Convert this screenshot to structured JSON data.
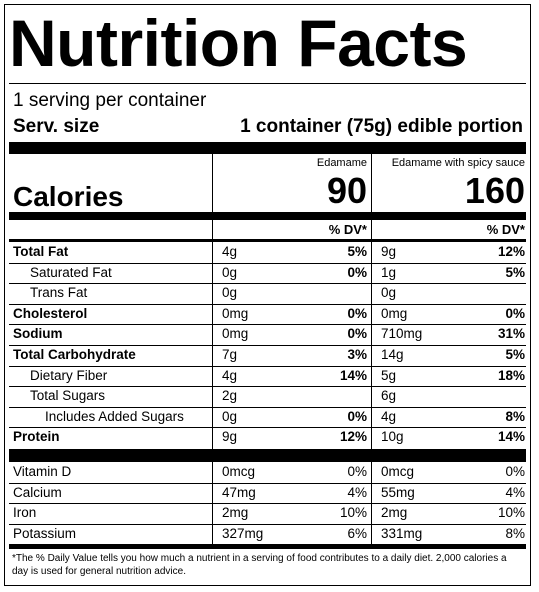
{
  "title": "Nutrition Facts",
  "servings": "1 serving per container",
  "serving_size_label": "Serv. size",
  "serving_size_value": "1 container (75g) edible portion",
  "columns": [
    {
      "name": "Edamame",
      "calories": "90"
    },
    {
      "name": "Edamame with spicy sauce",
      "calories": "160"
    }
  ],
  "calories_label": "Calories",
  "dv_header": "% DV*",
  "nutrients": [
    {
      "label": "Total Fat",
      "bold": true,
      "indent": 0,
      "c1_amt": "4g",
      "c1_dv": "5%",
      "c2_amt": "9g",
      "c2_dv": "12%"
    },
    {
      "label": "Saturated Fat",
      "bold": false,
      "indent": 1,
      "c1_amt": "0g",
      "c1_dv": "0%",
      "c2_amt": "1g",
      "c2_dv": "5%"
    },
    {
      "label": "Trans Fat",
      "bold": false,
      "indent": 1,
      "c1_amt": "0g",
      "c1_dv": "",
      "c2_amt": "0g",
      "c2_dv": ""
    },
    {
      "label": "Cholesterol",
      "bold": true,
      "indent": 0,
      "c1_amt": "0mg",
      "c1_dv": "0%",
      "c2_amt": "0mg",
      "c2_dv": "0%"
    },
    {
      "label": "Sodium",
      "bold": true,
      "indent": 0,
      "c1_amt": "0mg",
      "c1_dv": "0%",
      "c2_amt": "710mg",
      "c2_dv": "31%"
    },
    {
      "label": "Total Carbohydrate",
      "bold": true,
      "indent": 0,
      "c1_amt": "7g",
      "c1_dv": "3%",
      "c2_amt": "14g",
      "c2_dv": "5%"
    },
    {
      "label": "Dietary Fiber",
      "bold": false,
      "indent": 1,
      "c1_amt": "4g",
      "c1_dv": "14%",
      "c2_amt": "5g",
      "c2_dv": "18%"
    },
    {
      "label": "Total Sugars",
      "bold": false,
      "indent": 1,
      "c1_amt": "2g",
      "c1_dv": "",
      "c2_amt": "6g",
      "c2_dv": ""
    },
    {
      "label": "Includes Added Sugars",
      "bold": false,
      "indent": 2,
      "c1_amt": "0g",
      "c1_dv": "0%",
      "c2_amt": "4g",
      "c2_dv": "8%"
    },
    {
      "label": "Protein",
      "bold": true,
      "indent": 0,
      "c1_amt": "9g",
      "c1_dv": "12%",
      "c2_amt": "10g",
      "c2_dv": "14%"
    }
  ],
  "vitamins": [
    {
      "label": "Vitamin D",
      "c1_amt": "0mcg",
      "c1_dv": "0%",
      "c2_amt": "0mcg",
      "c2_dv": "0%"
    },
    {
      "label": "Calcium",
      "c1_amt": "47mg",
      "c1_dv": "4%",
      "c2_amt": "55mg",
      "c2_dv": "4%"
    },
    {
      "label": "Iron",
      "c1_amt": "2mg",
      "c1_dv": "10%",
      "c2_amt": "2mg",
      "c2_dv": "10%"
    },
    {
      "label": "Potassium",
      "c1_amt": "327mg",
      "c1_dv": "6%",
      "c2_amt": "331mg",
      "c2_dv": "8%"
    }
  ],
  "footnote": "*The % Daily Value tells you how much a nutrient in a serving of food contributes to a daily diet. 2,000 calories a day is used for general nutrition advice."
}
